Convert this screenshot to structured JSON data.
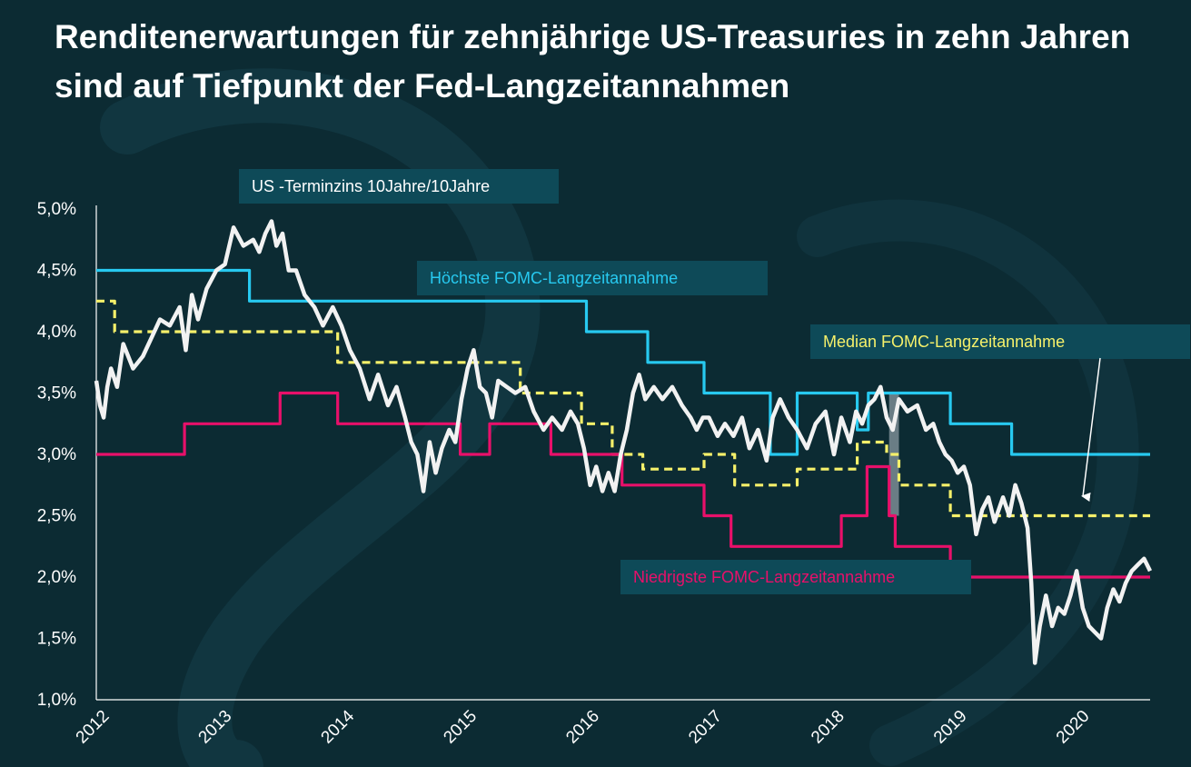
{
  "title": "Renditenerwartungen für zehnjährige US-Treasuries in zehn Jahren sind auf Tiefpunkt der Fed-Langzeitannahmen",
  "colors": {
    "background": "#0c2b33",
    "label_box": "#0e4a58",
    "forward": "#f2f2f2",
    "highest": "#27c9f0",
    "median": "#f5f06a",
    "lowest": "#e8106a",
    "highlight": "#8a9aa2"
  },
  "labels": {
    "forward": "US -Terminzins 10Jahre/10Jahre",
    "highest": "Höchste FOMC-Langzeitannahme",
    "median": "Median FOMC-Langzeitannahme",
    "lowest": "Niedrigste FOMC-Langzeitannahme"
  },
  "chart_data": {
    "type": "line",
    "ylim": [
      1.0,
      5.0
    ],
    "xlim": [
      2012.0,
      2020.6
    ],
    "y_ticks": [
      "5,0%",
      "4,5%",
      "4,0%",
      "3,5%",
      "3,0%",
      "2,5%",
      "2,0%",
      "1,5%",
      "1,0%"
    ],
    "y_tick_values": [
      5.0,
      4.5,
      4.0,
      3.5,
      3.0,
      2.5,
      2.0,
      1.5,
      1.0
    ],
    "x_ticks": [
      "2012",
      "2013",
      "2014",
      "2015",
      "2016",
      "2017",
      "2018",
      "2019",
      "2020"
    ],
    "x_tick_values": [
      2012,
      2013,
      2014,
      2015,
      2016,
      2017,
      2018,
      2019,
      2020
    ],
    "highlight_band": [
      2018.47,
      2018.55,
      2.5,
      3.5
    ],
    "series": [
      {
        "name": "Höchste FOMC-Langzeitannahme",
        "style": "step",
        "x": [
          2012.0,
          2013.25,
          2016.0,
          2016.5,
          2016.96,
          2017.5,
          2017.72,
          2018.21,
          2018.3,
          2018.45,
          2018.97,
          2019.47,
          2020.6
        ],
        "y": [
          4.5,
          4.25,
          4.0,
          3.75,
          3.5,
          3.0,
          3.5,
          3.2,
          3.5,
          3.5,
          3.25,
          3.0,
          3.0
        ]
      },
      {
        "name": "Median FOMC-Langzeitannahme",
        "style": "step-dashed",
        "x": [
          2012.0,
          2012.15,
          2013.97,
          2014.97,
          2015.46,
          2015.96,
          2016.21,
          2016.46,
          2016.96,
          2017.21,
          2017.72,
          2018.21,
          2018.45,
          2018.55,
          2018.97,
          2020.6
        ],
        "y": [
          4.25,
          4.0,
          3.75,
          3.75,
          3.5,
          3.25,
          3.0,
          2.88,
          3.0,
          2.75,
          2.88,
          3.1,
          3.0,
          2.75,
          2.5,
          2.5
        ]
      },
      {
        "name": "Niedrigste FOMC-Langzeitannahme",
        "style": "step",
        "x": [
          2012.0,
          2012.72,
          2013.5,
          2013.97,
          2014.72,
          2014.97,
          2015.21,
          2015.71,
          2015.96,
          2016.29,
          2016.96,
          2017.18,
          2017.96,
          2018.08,
          2018.21,
          2018.29,
          2018.4,
          2018.47,
          2018.52,
          2018.97,
          2020.6
        ],
        "y": [
          3.0,
          3.25,
          3.5,
          3.25,
          3.25,
          3.0,
          3.25,
          3.0,
          3.0,
          2.75,
          2.5,
          2.25,
          2.25,
          2.5,
          2.5,
          2.9,
          2.9,
          2.5,
          2.25,
          2.0,
          2.0
        ]
      },
      {
        "name": "US -Terminzins 10Jahre/10Jahre",
        "style": "line",
        "x": [
          2012.0,
          2012.03,
          2012.06,
          2012.09,
          2012.12,
          2012.17,
          2012.22,
          2012.3,
          2012.38,
          2012.45,
          2012.52,
          2012.6,
          2012.68,
          2012.73,
          2012.78,
          2012.83,
          2012.9,
          2012.98,
          2013.05,
          2013.12,
          2013.2,
          2013.28,
          2013.33,
          2013.38,
          2013.43,
          2013.47,
          2013.52,
          2013.57,
          2013.63,
          2013.7,
          2013.78,
          2013.85,
          2013.93,
          2014.0,
          2014.07,
          2014.15,
          2014.23,
          2014.3,
          2014.38,
          2014.45,
          2014.52,
          2014.57,
          2014.62,
          2014.67,
          2014.72,
          2014.77,
          2014.82,
          2014.88,
          2014.93,
          2014.98,
          2015.03,
          2015.08,
          2015.13,
          2015.18,
          2015.23,
          2015.28,
          2015.35,
          2015.42,
          2015.5,
          2015.57,
          2015.65,
          2015.72,
          2015.8,
          2015.87,
          2015.93,
          2015.98,
          2016.03,
          2016.08,
          2016.13,
          2016.18,
          2016.23,
          2016.28,
          2016.33,
          2016.38,
          2016.43,
          2016.48,
          2016.55,
          2016.62,
          2016.7,
          2016.78,
          2016.85,
          2016.9,
          2016.95,
          2017.0,
          2017.07,
          2017.13,
          2017.2,
          2017.27,
          2017.33,
          2017.4,
          2017.47,
          2017.52,
          2017.58,
          2017.65,
          2017.72,
          2017.8,
          2017.87,
          2017.95,
          2018.02,
          2018.08,
          2018.15,
          2018.2,
          2018.25,
          2018.3,
          2018.35,
          2018.4,
          2018.45,
          2018.5,
          2018.55,
          2018.62,
          2018.7,
          2018.77,
          2018.83,
          2018.88,
          2018.93,
          2018.98,
          2019.03,
          2019.08,
          2019.13,
          2019.18,
          2019.23,
          2019.28,
          2019.33,
          2019.4,
          2019.45,
          2019.5,
          2019.55,
          2019.6,
          2019.63,
          2019.66,
          2019.7,
          2019.75,
          2019.8,
          2019.85,
          2019.9,
          2019.95,
          2020.0,
          2020.05,
          2020.1,
          2020.15,
          2020.2,
          2020.25,
          2020.3,
          2020.35,
          2020.4,
          2020.45,
          2020.5,
          2020.55,
          2020.6
        ],
        "y": [
          3.6,
          3.4,
          3.3,
          3.55,
          3.7,
          3.55,
          3.9,
          3.7,
          3.8,
          3.95,
          4.1,
          4.05,
          4.2,
          3.85,
          4.3,
          4.1,
          4.35,
          4.5,
          4.55,
          4.85,
          4.7,
          4.75,
          4.65,
          4.8,
          4.9,
          4.7,
          4.8,
          4.5,
          4.5,
          4.3,
          4.2,
          4.05,
          4.2,
          4.05,
          3.85,
          3.7,
          3.45,
          3.65,
          3.4,
          3.55,
          3.3,
          3.1,
          3.0,
          2.7,
          3.1,
          2.85,
          3.05,
          3.2,
          3.1,
          3.45,
          3.7,
          3.85,
          3.55,
          3.5,
          3.3,
          3.6,
          3.55,
          3.5,
          3.55,
          3.35,
          3.2,
          3.3,
          3.2,
          3.35,
          3.25,
          3.05,
          2.75,
          2.9,
          2.7,
          2.85,
          2.7,
          3.0,
          3.2,
          3.5,
          3.65,
          3.45,
          3.55,
          3.45,
          3.55,
          3.4,
          3.3,
          3.2,
          3.3,
          3.3,
          3.15,
          3.25,
          3.15,
          3.3,
          3.05,
          3.2,
          2.95,
          3.3,
          3.45,
          3.3,
          3.2,
          3.05,
          3.25,
          3.35,
          3.0,
          3.3,
          3.1,
          3.35,
          3.25,
          3.4,
          3.45,
          3.55,
          3.3,
          3.2,
          3.45,
          3.35,
          3.4,
          3.2,
          3.25,
          3.1,
          3.0,
          2.95,
          2.85,
          2.9,
          2.75,
          2.35,
          2.55,
          2.65,
          2.45,
          2.65,
          2.5,
          2.75,
          2.6,
          2.4,
          1.95,
          1.3,
          1.6,
          1.85,
          1.6,
          1.75,
          1.7,
          1.85,
          2.05,
          1.75,
          1.6,
          1.55,
          1.5,
          1.75,
          1.9,
          1.8,
          1.95,
          2.05,
          2.1,
          2.15,
          2.05
        ]
      }
    ]
  }
}
